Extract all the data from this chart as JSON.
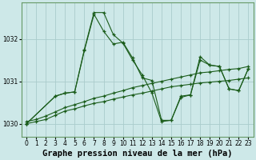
{
  "background_color": "#cde8e8",
  "grid_color": "#aacccc",
  "line_color": "#1a5c1a",
  "title": "Graphe pression niveau de la mer (hPa)",
  "xlim": [
    -0.5,
    23.5
  ],
  "ylim": [
    1029.7,
    1032.85
  ],
  "yticks": [
    1030,
    1031,
    1032
  ],
  "xticks": [
    0,
    1,
    2,
    3,
    4,
    5,
    6,
    7,
    8,
    9,
    10,
    11,
    12,
    13,
    14,
    15,
    16,
    17,
    18,
    19,
    20,
    21,
    22,
    23
  ],
  "series": [
    {
      "x": [
        0,
        1,
        2,
        3,
        4,
        5,
        6,
        7,
        8,
        9,
        10,
        11,
        12,
        13,
        14,
        15,
        16,
        17,
        18,
        19,
        20,
        21,
        22,
        23
      ],
      "y": [
        1030.0,
        1030.05,
        1030.1,
        1030.2,
        1030.3,
        1030.35,
        1030.42,
        1030.48,
        1030.52,
        1030.58,
        1030.63,
        1030.68,
        1030.72,
        1030.77,
        1030.82,
        1030.87,
        1030.9,
        1030.93,
        1030.96,
        1030.98,
        1031.0,
        1031.02,
        1031.05,
        1031.08
      ]
    },
    {
      "x": [
        0,
        1,
        2,
        3,
        4,
        5,
        6,
        7,
        8,
        9,
        10,
        11,
        12,
        13,
        14,
        15,
        16,
        17,
        18,
        19,
        20,
        21,
        22,
        23
      ],
      "y": [
        1030.05,
        1030.1,
        1030.18,
        1030.28,
        1030.38,
        1030.45,
        1030.52,
        1030.6,
        1030.65,
        1030.72,
        1030.78,
        1030.85,
        1030.9,
        1030.95,
        1031.0,
        1031.05,
        1031.1,
        1031.15,
        1031.2,
        1031.22,
        1031.25,
        1031.28,
        1031.3,
        1031.35
      ]
    },
    {
      "x": [
        0,
        3,
        4,
        5,
        6,
        7,
        8,
        9,
        10,
        11,
        12,
        13,
        14,
        15,
        16,
        17,
        18,
        19,
        20,
        21,
        22,
        23
      ],
      "y": [
        1030.0,
        1030.65,
        1030.72,
        1030.75,
        1031.75,
        1032.62,
        1032.62,
        1032.1,
        1031.9,
        1031.5,
        1031.15,
        1030.72,
        1030.05,
        1030.08,
        1030.65,
        1030.68,
        1031.5,
        1031.38,
        1031.35,
        1030.82,
        1030.78,
        1031.3
      ]
    },
    {
      "x": [
        0,
        3,
        4,
        5,
        6,
        7,
        8,
        9,
        10,
        11,
        12,
        13,
        14,
        15,
        16,
        17,
        18,
        19,
        20,
        21,
        22,
        23
      ],
      "y": [
        1030.0,
        1030.65,
        1030.72,
        1030.75,
        1031.72,
        1032.58,
        1032.18,
        1031.88,
        1031.92,
        1031.55,
        1031.08,
        1031.02,
        1030.08,
        1030.08,
        1030.62,
        1030.68,
        1031.58,
        1031.38,
        1031.35,
        1030.82,
        1030.78,
        1031.3
      ]
    }
  ],
  "title_fontsize": 7.5,
  "tick_fontsize": 5.5
}
